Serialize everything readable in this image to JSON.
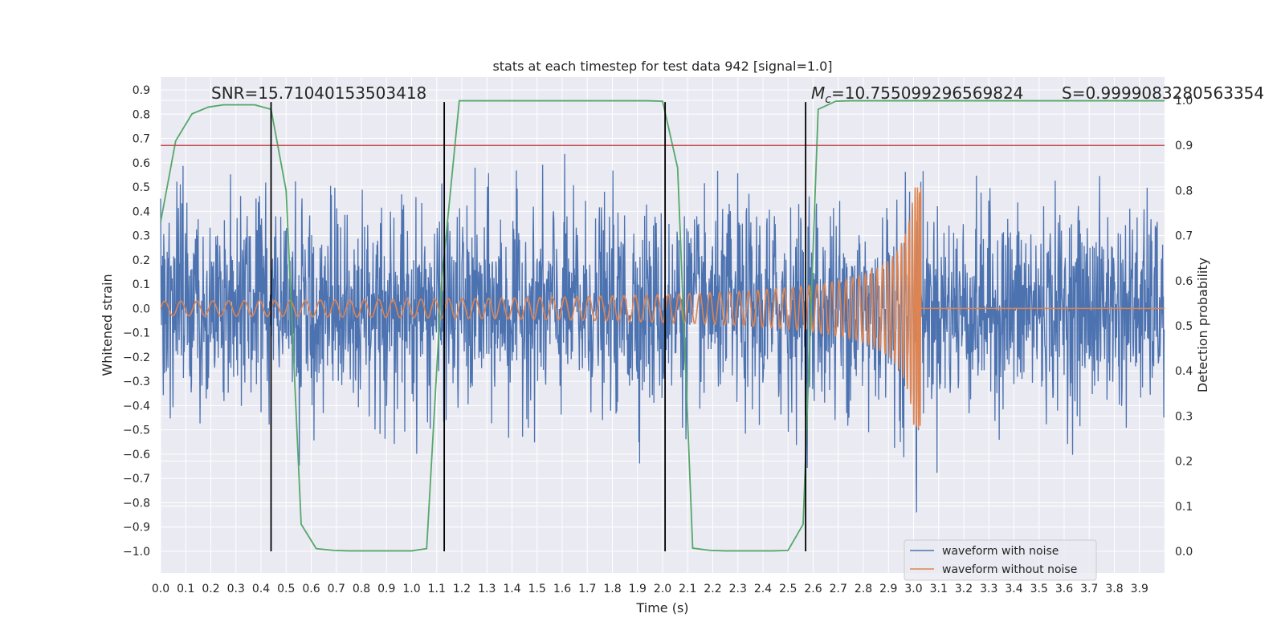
{
  "chart_data": {
    "type": "line",
    "title": "stats at each timestep for test data 942 [signal=1.0]",
    "xlabel": "Time (s)",
    "ylabel": "Whitened strain",
    "y2label": "Detection probability",
    "xlim": [
      0.0,
      4.0
    ],
    "ylim": [
      -1.09,
      0.95
    ],
    "y2lim": [
      -0.05,
      1.03
    ],
    "x_ticks": [
      0.0,
      0.1,
      0.2,
      0.3,
      0.4,
      0.5,
      0.6,
      0.7,
      0.8,
      0.9,
      1.0,
      1.1,
      1.2,
      1.3,
      1.4,
      1.5,
      1.6,
      1.7,
      1.8,
      1.9,
      2.0,
      2.1,
      2.2,
      2.3,
      2.4,
      2.5,
      2.6,
      2.7,
      2.8,
      2.9,
      3.0,
      3.1,
      3.2,
      3.3,
      3.4,
      3.5,
      3.6,
      3.7,
      3.8,
      3.9
    ],
    "x_tick_labels": [
      "0.0",
      "0.1",
      "0.2",
      "0.3",
      "0.4",
      "0.5",
      "0.6",
      "0.7",
      "0.8",
      "0.9",
      "1.0",
      "1.1",
      "1.2",
      "1.3",
      "1.4",
      "1.5",
      "1.6",
      "1.7",
      "1.8",
      "1.9",
      "2.0",
      "2.1",
      "2.2",
      "2.3",
      "2.4",
      "2.5",
      "2.6",
      "2.7",
      "2.8",
      "2.9",
      "3.0",
      "3.1",
      "3.2",
      "3.3",
      "3.4",
      "3.5",
      "3.6",
      "3.7",
      "3.8",
      "3.9"
    ],
    "y_ticks": [
      0.9,
      0.8,
      0.7,
      0.6,
      0.5,
      0.4,
      0.3,
      0.2,
      0.1,
      0.0,
      -0.1,
      -0.2,
      -0.3,
      -0.4,
      -0.5,
      -0.6,
      -0.7,
      -0.8,
      -0.9,
      -1.0
    ],
    "y_tick_labels": [
      "0.9",
      "0.8",
      "0.7",
      "0.6",
      "0.5",
      "0.4",
      "0.3",
      "0.2",
      "0.1",
      "0.0",
      "−0.1",
      "−0.2",
      "−0.3",
      "−0.4",
      "−0.5",
      "−0.6",
      "−0.7",
      "−0.8",
      "−0.9",
      "−1.0"
    ],
    "y2_ticks": [
      1.0,
      0.9,
      0.8,
      0.7,
      0.6,
      0.5,
      0.4,
      0.3,
      0.2,
      0.1,
      0.0
    ],
    "y2_tick_labels": [
      "1.0",
      "0.9",
      "0.8",
      "0.7",
      "0.6",
      "0.5",
      "0.4",
      "0.3",
      "0.2",
      "0.1",
      "0.0"
    ],
    "annotations": {
      "snr": "SNR=15.71040153503418",
      "mc": "=10.755099296569824",
      "mc_symbol": "M",
      "mc_subscript": "c",
      "s": "S=0.9999083280563354"
    },
    "threshold": {
      "axis": "y2",
      "value": 0.9,
      "color": "#c44e52"
    },
    "vertical_markers": {
      "x": [
        0.44,
        1.13,
        2.01,
        2.57
      ],
      "y_range": [
        -1.0,
        0.85
      ],
      "color": "#000000"
    },
    "series": [
      {
        "name": "waveform with noise",
        "color": "#4c72b0",
        "description": "noisy whitened strain, roughly gaussian with std ~0.2, peaks up to ~0.85 and down to ~-1.0",
        "std": 0.2,
        "max": 0.85,
        "min": -1.0
      },
      {
        "name": "waveform without noise",
        "color": "#dd8452",
        "description": "chirp signal, amplitude ~0.03 rising to ~0.5 at merger t~3.03 s, zero afterwards",
        "merger_time": 3.03,
        "start_amplitude": 0.03,
        "peak_amplitude": 0.5
      },
      {
        "name": "detection probability",
        "color": "#55a868",
        "axis": "y2",
        "x": [
          0.0,
          0.06,
          0.125,
          0.19,
          0.25,
          0.31,
          0.375,
          0.44,
          0.5,
          0.56,
          0.62,
          0.69,
          0.75,
          0.81,
          0.875,
          0.94,
          1.0,
          1.06,
          1.12,
          1.19,
          1.25,
          1.31,
          1.375,
          1.44,
          1.5,
          1.56,
          1.62,
          1.69,
          1.75,
          1.81,
          1.875,
          1.94,
          2.0,
          2.06,
          2.12,
          2.19,
          2.25,
          2.31,
          2.375,
          2.44,
          2.5,
          2.56,
          2.62,
          2.69,
          2.75,
          2.81,
          2.875,
          2.94,
          3.0,
          3.06,
          3.12,
          3.19,
          3.25,
          3.31,
          3.375,
          3.44,
          3.5,
          3.56,
          3.62,
          3.69,
          3.75,
          3.81,
          3.875,
          3.94,
          4.0
        ],
        "y": [
          0.73,
          0.91,
          0.97,
          0.985,
          0.99,
          0.99,
          0.99,
          0.98,
          0.8,
          0.06,
          0.006,
          0.002,
          0.001,
          0.001,
          0.001,
          0.001,
          0.001,
          0.006,
          0.6,
          0.999,
          0.999,
          0.999,
          0.999,
          0.999,
          0.999,
          0.999,
          0.999,
          0.999,
          0.999,
          0.999,
          0.999,
          0.999,
          0.998,
          0.85,
          0.007,
          0.002,
          0.001,
          0.001,
          0.001,
          0.001,
          0.002,
          0.06,
          0.98,
          0.998,
          0.999,
          0.999,
          0.999,
          0.999,
          0.999,
          0.999,
          0.999,
          0.999,
          0.999,
          0.999,
          0.999,
          0.999,
          0.999,
          0.999,
          0.999,
          0.999,
          0.999,
          0.999,
          0.999,
          0.999,
          0.999
        ]
      }
    ],
    "legend": {
      "placement": "bottom-right",
      "entries": [
        "waveform with noise",
        "waveform without noise"
      ]
    },
    "colors": {
      "axes_bg": "#eaeaf2",
      "grid": "#ffffff",
      "text": "#262626"
    }
  }
}
